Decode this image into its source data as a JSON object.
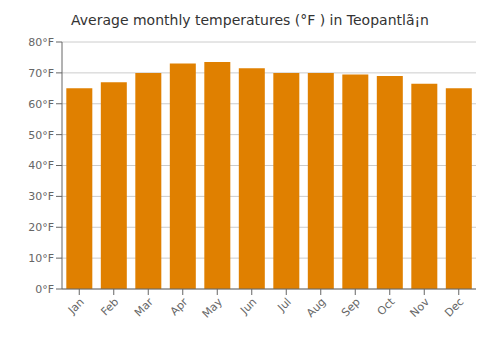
{
  "chart_data": {
    "type": "bar",
    "title": "Average monthly temperatures (°F ) in Teopantlã¡n",
    "categories": [
      "Jan",
      "Feb",
      "Mar",
      "Apr",
      "May",
      "Jun",
      "Jul",
      "Aug",
      "Sep",
      "Oct",
      "Nov",
      "Dec"
    ],
    "values": [
      65,
      67,
      70,
      73,
      73.5,
      71.5,
      70,
      70,
      69.5,
      69,
      66.5,
      65
    ],
    "color": "#E08000",
    "ylim": [
      0,
      80
    ],
    "yticks": [
      {
        "value": 0,
        "label": "0°F"
      },
      {
        "value": 10,
        "label": "10°F"
      },
      {
        "value": 20,
        "label": "20°F"
      },
      {
        "value": 30,
        "label": "30°F"
      },
      {
        "value": 40,
        "label": "40°F"
      },
      {
        "value": 50,
        "label": "50°F"
      },
      {
        "value": 60,
        "label": "60°F"
      },
      {
        "value": 70,
        "label": "70°F"
      },
      {
        "value": 80,
        "label": "80°F"
      }
    ],
    "grid": true
  }
}
